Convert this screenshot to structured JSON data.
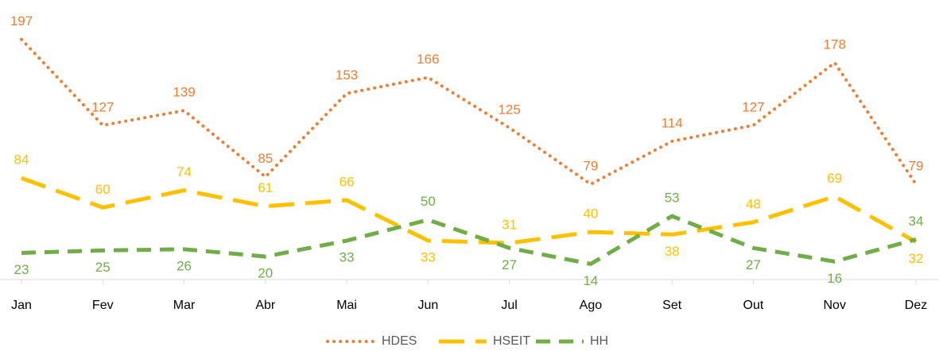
{
  "chart_data": {
    "type": "line",
    "categories": [
      "Jan",
      "Fev",
      "Mar",
      "Abr",
      "Mai",
      "Jun",
      "Jul",
      "Ago",
      "Set",
      "Out",
      "Nov",
      "Dez"
    ],
    "series": [
      {
        "name": "HDES",
        "color": "#ED7D31",
        "values": [
          197,
          127,
          139,
          85,
          153,
          166,
          125,
          79,
          114,
          127,
          178,
          79
        ]
      },
      {
        "name": "HSEIT",
        "color": "#FFC000",
        "values": [
          84,
          60,
          74,
          61,
          66,
          33,
          31,
          40,
          38,
          48,
          69,
          32
        ]
      },
      {
        "name": "HH",
        "color": "#70AD47",
        "values": [
          23,
          25,
          26,
          20,
          33,
          50,
          27,
          14,
          53,
          27,
          16,
          34
        ]
      }
    ],
    "ylim": [
      0,
      200
    ],
    "legend": "bottom"
  }
}
